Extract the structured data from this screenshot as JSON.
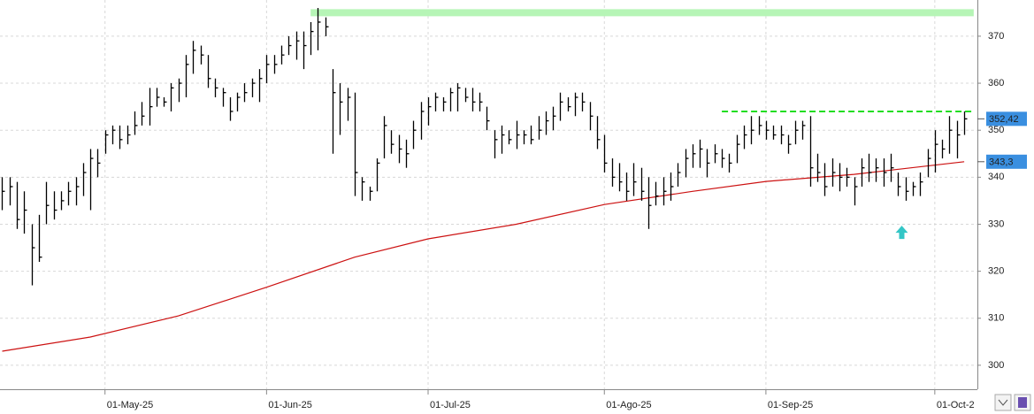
{
  "chart_data": {
    "type": "ohlc",
    "high": [
      340,
      340,
      339,
      337,
      330,
      332,
      339,
      337,
      337,
      339,
      340,
      343,
      346,
      346,
      350,
      351,
      351,
      351,
      354,
      356,
      359,
      359,
      357,
      360,
      361,
      366,
      369,
      368,
      366,
      361,
      359,
      357,
      358,
      360,
      361,
      363,
      366,
      366,
      368,
      370,
      371,
      371,
      373,
      376,
      374,
      363,
      360,
      359,
      358,
      340,
      338,
      344,
      353,
      350,
      349,
      348,
      352,
      356,
      357,
      358,
      357,
      359,
      360,
      359,
      359,
      358,
      355,
      350,
      351,
      350,
      352,
      350,
      351,
      353,
      354,
      355,
      358,
      357,
      358,
      358,
      356,
      353,
      349,
      344,
      343,
      341,
      343,
      342,
      340,
      339,
      340,
      341,
      343,
      346,
      347,
      348,
      346,
      347,
      346,
      345,
      349,
      351,
      353,
      353,
      352,
      351,
      351,
      349,
      352,
      352,
      353,
      345,
      343,
      344,
      343,
      342,
      340,
      344,
      345,
      344,
      344,
      345,
      341,
      340,
      339,
      341,
      346,
      350,
      348,
      353,
      352,
      354
    ],
    "low": [
      333,
      334,
      329,
      328,
      317,
      322,
      330,
      331,
      333,
      334,
      334,
      336,
      333,
      340,
      345,
      347,
      346,
      347,
      349,
      351,
      351,
      355,
      355,
      354,
      356,
      357,
      362,
      364,
      359,
      357,
      355,
      352,
      354,
      356,
      357,
      356,
      360,
      362,
      364,
      366,
      365,
      363,
      366,
      367,
      370,
      345,
      349,
      352,
      336,
      335,
      335,
      337,
      344,
      345,
      343,
      342,
      346,
      348,
      351,
      354,
      354,
      354,
      354,
      356,
      354,
      354,
      350,
      344,
      345,
      347,
      346,
      347,
      347,
      348,
      349,
      350,
      352,
      354,
      353,
      354,
      350,
      346,
      341,
      338,
      337,
      335,
      336,
      335,
      329,
      334,
      334,
      335,
      338,
      340,
      342,
      342,
      340,
      343,
      342,
      341,
      343,
      346,
      347,
      349,
      348,
      348,
      347,
      345,
      347,
      348,
      338,
      339,
      336,
      338,
      337,
      338,
      334,
      338,
      339,
      339,
      338,
      339,
      336,
      335,
      336,
      336,
      340,
      341,
      344,
      345,
      344,
      349
    ],
    "close": [
      337,
      338,
      331,
      333,
      325,
      323,
      334,
      333,
      335,
      337,
      338,
      341,
      344,
      343,
      349,
      350,
      348,
      349,
      351,
      353,
      355,
      357,
      356,
      359,
      360,
      364,
      367,
      366,
      361,
      359,
      358,
      354,
      357,
      358,
      360,
      361,
      364,
      364,
      366,
      368,
      369,
      368,
      371,
      373,
      372,
      358,
      356,
      357,
      341,
      339,
      337,
      343,
      351,
      347,
      346,
      345,
      350,
      354,
      355,
      357,
      356,
      358,
      359,
      357,
      356,
      356,
      352,
      348,
      349,
      348,
      349,
      349,
      348,
      350,
      352,
      353,
      356,
      355,
      357,
      356,
      353,
      348,
      343,
      340,
      339,
      337,
      339,
      337,
      334,
      336,
      337,
      338,
      341,
      344,
      345,
      346,
      343,
      345,
      344,
      343,
      347,
      349,
      350,
      351,
      350,
      349,
      349,
      347,
      350,
      351,
      342,
      341,
      338,
      341,
      340,
      340,
      338,
      342,
      341,
      342,
      341,
      342,
      338,
      337,
      338,
      339,
      344,
      347,
      346,
      350,
      349,
      352.42
    ],
    "color": "#000000",
    "average": {
      "x": [
        0,
        12,
        24,
        36,
        48,
        58,
        70,
        82,
        94,
        104,
        116,
        131
      ],
      "values": [
        303,
        306,
        310.5,
        316.6,
        323,
        326.9,
        330,
        334.2,
        337,
        339.1,
        340.6,
        343.3
      ],
      "color": "#cc1111"
    },
    "ylim": [
      294.9,
      377.7
    ],
    "yticks": [
      300,
      310,
      320,
      330,
      340,
      350,
      360,
      370
    ],
    "xlim": [
      -0.3,
      132.8
    ],
    "xticks": [
      {
        "value": 14,
        "label": "01-May-25"
      },
      {
        "value": 36,
        "label": "01-Jun-25"
      },
      {
        "value": 58,
        "label": "01-Jul-25"
      },
      {
        "value": 82,
        "label": "01-Ago-25"
      },
      {
        "value": 104,
        "label": "01-Sep-25"
      },
      {
        "value": 127,
        "label": "01-Oct-2"
      }
    ],
    "grid": true,
    "hlines": [
      {
        "value": 375,
        "from": 42,
        "to": 132.3,
        "color": "#b6f5b6",
        "style": "band"
      },
      {
        "value": 354,
        "from": 98,
        "to": 132.3,
        "color": "#22dd22",
        "style": "dashed"
      }
    ],
    "arrow": {
      "x": 122.5,
      "value": 328,
      "color": "#33c6c6"
    },
    "price_labels": [
      {
        "value": 352.42,
        "label": "352,42",
        "color": "#3a8fe0"
      },
      {
        "value": 343.3,
        "label": "343,3",
        "color": "#3a8fe0"
      }
    ]
  }
}
